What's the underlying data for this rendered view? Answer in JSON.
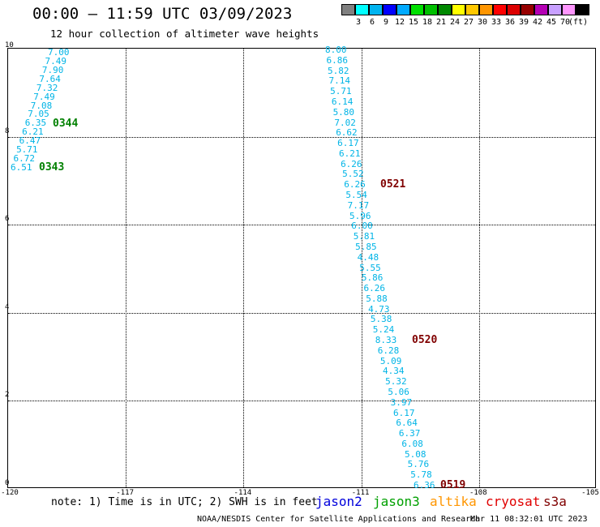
{
  "title": "00:00 – 11:59 UTC 03/09/2023",
  "subtitle": "12 hour collection of altimeter wave heights",
  "colorbar": {
    "colors": [
      "#808080",
      "#00ffff",
      "#00b4f0",
      "#0000ff",
      "#00aaff",
      "#00e000",
      "#00c000",
      "#008800",
      "#ffff00",
      "#ffc800",
      "#ff9600",
      "#ff0000",
      "#dc0000",
      "#960000",
      "#b400b4",
      "#c8a0ff",
      "#ff96ff",
      "#000000"
    ],
    "labels": [
      "3",
      "6",
      "9",
      "12",
      "15",
      "18",
      "21",
      "24",
      "27",
      "30",
      "33",
      "36",
      "39",
      "42",
      "45",
      "70"
    ],
    "unit": "(ft)"
  },
  "axes": {
    "x_ticks": [
      "-120",
      "-117",
      "-114",
      "-111",
      "-108",
      "-105"
    ],
    "y_ticks": [
      "0",
      "2",
      "4",
      "6",
      "8",
      "10"
    ]
  },
  "swh_color": "#00b4e6",
  "track_east": [
    "8.00",
    "6.86",
    "5.82",
    "7.14",
    "5.71",
    "6.14",
    "5.80",
    "7.02",
    "6.62",
    "6.17",
    "6.21",
    "6.26",
    "5.52",
    "6.26",
    "5.54",
    "7.17",
    "5.96",
    "6.00",
    "5.81",
    "5.85",
    "4.48",
    "5.55",
    "5.86",
    "6.26",
    "5.88",
    "4.73",
    "5.38",
    "5.24",
    "8.33",
    "6.28",
    "5.09",
    "4.34",
    "5.32",
    "5.06",
    "3.97",
    "6.17",
    "6.64",
    "6.37",
    "6.08",
    "5.08",
    "5.76",
    "5.78",
    "6.36"
  ],
  "track_west": [
    "7.00",
    "7.49",
    "7.90",
    "7.64",
    "7.32",
    "7.49",
    "7.08",
    "7.05",
    "6.35",
    "6.21",
    "6.47",
    "5.71",
    "6.72",
    "6.51"
  ],
  "passes": [
    {
      "label": "0344",
      "color": "#008000"
    },
    {
      "label": "0343",
      "color": "#008000"
    },
    {
      "label": "0521",
      "color": "#800000"
    },
    {
      "label": "0520",
      "color": "#800000"
    },
    {
      "label": "0519",
      "color": "#800000"
    }
  ],
  "note": "note: 1) Time is in UTC; 2) SWH is in feet",
  "satellites": [
    {
      "name": "jason2",
      "color": "#0000dc"
    },
    {
      "name": "jason3",
      "color": "#00a000"
    },
    {
      "name": "altika",
      "color": "#ff9600"
    },
    {
      "name": "cryosat",
      "color": "#e00000"
    },
    {
      "name": "s3a",
      "color": "#800000"
    }
  ],
  "footer_left": "NOAA/NESDIS Center for Satellite Applications and Research",
  "footer_right": "Mar 11 08:32:01 UTC 2023"
}
